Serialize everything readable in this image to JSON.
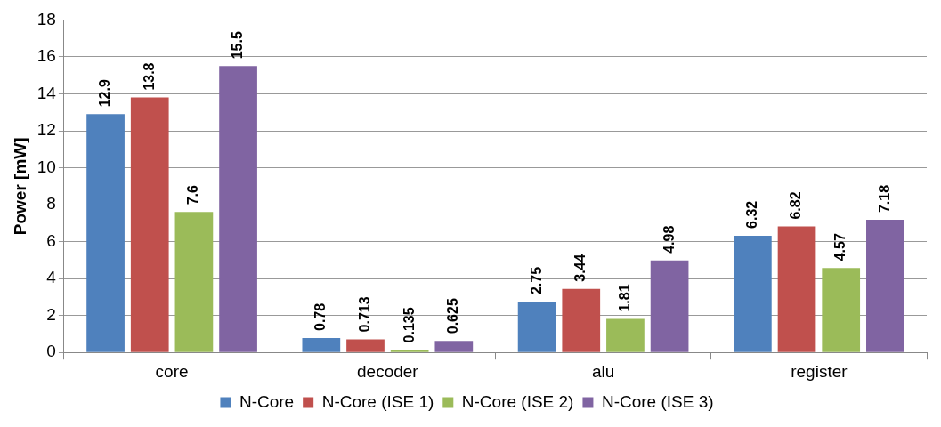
{
  "chart_data": {
    "type": "bar",
    "ylabel": "Power [mW]",
    "categories": [
      "core",
      "decoder",
      "alu",
      "register"
    ],
    "series": [
      {
        "name": "N-Core",
        "color": "#4f81bd",
        "values": [
          12.9,
          0.78,
          2.75,
          6.32
        ]
      },
      {
        "name": "N-Core (ISE 1)",
        "color": "#c0504d",
        "values": [
          13.8,
          0.713,
          3.44,
          6.82
        ]
      },
      {
        "name": "N-Core (ISE 2)",
        "color": "#9bbb59",
        "values": [
          7.6,
          0.135,
          1.81,
          4.57
        ]
      },
      {
        "name": "N-Core (ISE 3)",
        "color": "#8064a2",
        "values": [
          15.5,
          0.625,
          4.98,
          7.18
        ]
      }
    ],
    "ylim": [
      0,
      18
    ],
    "yticks": [
      0,
      2,
      4,
      6,
      8,
      10,
      12,
      14,
      16,
      18
    ],
    "grid": "y",
    "legend": "bottom",
    "data_labels": true
  }
}
